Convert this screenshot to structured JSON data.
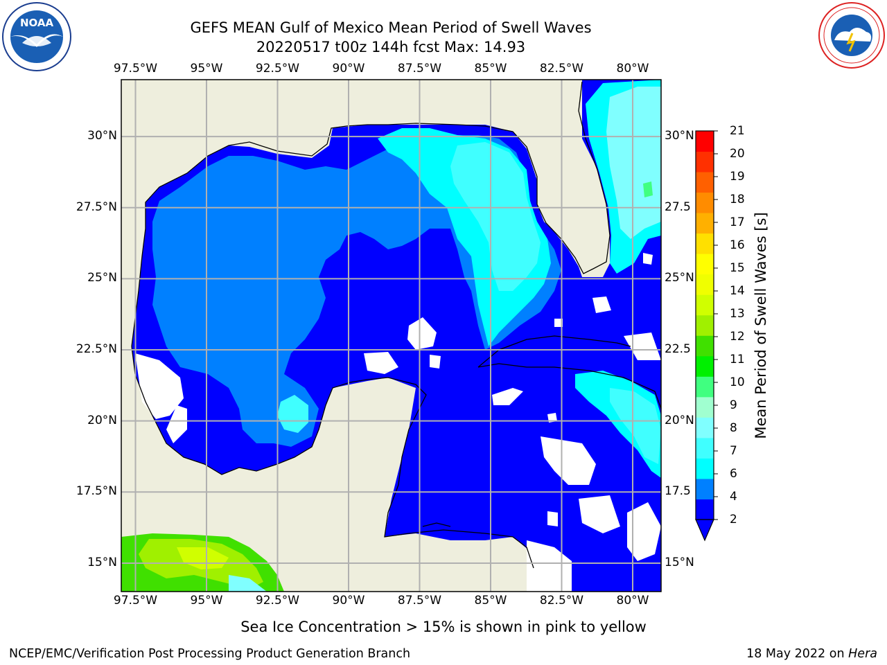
{
  "title": {
    "line1": "GEFS MEAN Gulf of Mexico Mean Period of Swell Waves",
    "line2": "20220517 t00z 144h fcst   Max: 14.93"
  },
  "logos": {
    "left": "NOAA",
    "right": "NATIONAL WEATHER SERVICE"
  },
  "map": {
    "lon_ticks": [
      "97.5°W",
      "95°W",
      "92.5°W",
      "90°W",
      "87.5°W",
      "85°W",
      "82.5°W",
      "80°W"
    ],
    "lat_ticks_left": [
      "30°N",
      "27.5°N",
      "25°N",
      "22.5°N",
      "20°N",
      "17.5°N",
      "15°N"
    ],
    "lat_ticks_right": [
      "30°N",
      "27.5",
      "25°N",
      "22.5",
      "20°N",
      "17.5",
      "15°N"
    ],
    "lon_range": [
      -98.0,
      -79.0
    ],
    "lat_range": [
      14.0,
      32.0
    ],
    "land_color": "#eeeedd",
    "grid_color": "#b0b0b0"
  },
  "colorbar": {
    "label": "Mean Period of Swell Waves [s]",
    "ticks": [
      "21",
      "20",
      "19",
      "18",
      "17",
      "16",
      "15",
      "14",
      "13",
      "12",
      "11",
      "10",
      "9",
      "8",
      "7",
      "6",
      "4",
      "2"
    ],
    "colors": [
      "#0000ff",
      "#0080ff",
      "#00ffff",
      "#40ffff",
      "#80ffff",
      "#a0ffd0",
      "#40ff80",
      "#00f000",
      "#40e000",
      "#a0f000",
      "#d0ff00",
      "#f0ff00",
      "#ffff00",
      "#ffe000",
      "#ffb000",
      "#ff8c00",
      "#ff6000",
      "#ff3000",
      "#ff0000"
    ],
    "extend": "min"
  },
  "footer": {
    "ice_note": "Sea Ice Concentration > 15% is shown in pink to yellow",
    "branch": "NCEP/EMC/Verification Post Processing Product Generation Branch",
    "date": "18 May 2022 on",
    "host": "Hera"
  }
}
